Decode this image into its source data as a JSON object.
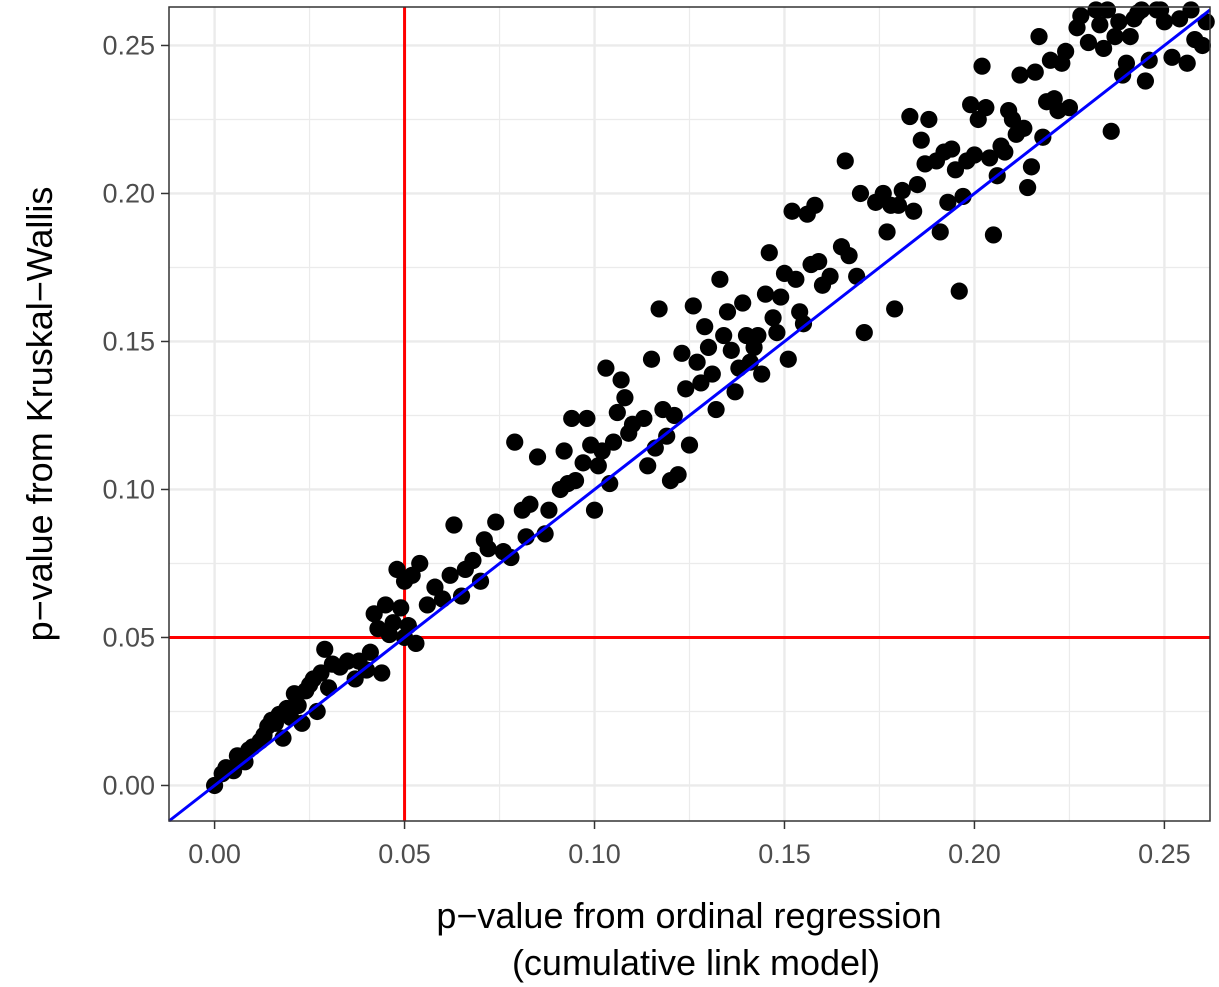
{
  "chart_data": {
    "type": "scatter",
    "title": "",
    "xlabel_lines": [
      "p−value from ordinal regression",
      "(cumulative link model)"
    ],
    "ylabel": "p−value from Kruskal−Wallis",
    "xlim": [
      -0.012,
      0.262
    ],
    "ylim": [
      -0.012,
      0.263
    ],
    "x_ticks": [
      0.0,
      0.05,
      0.1,
      0.15,
      0.2,
      0.25
    ],
    "y_ticks": [
      0.0,
      0.05,
      0.1,
      0.15,
      0.2,
      0.25
    ],
    "x_tick_labels": [
      "0.00",
      "0.05",
      "0.10",
      "0.15",
      "0.20",
      "0.25"
    ],
    "y_tick_labels": [
      "0.00",
      "0.05",
      "0.10",
      "0.15",
      "0.20",
      "0.25"
    ],
    "grid": true,
    "reference_lines": {
      "vertical_x": 0.05,
      "horizontal_y": 0.05,
      "threshold_color": "#ff0000",
      "identity_line": {
        "slope": 1,
        "intercept": 0,
        "color": "#0000ff"
      }
    },
    "point_color": "#000000",
    "points": [
      [
        0.0,
        0.0
      ],
      [
        0.002,
        0.004
      ],
      [
        0.003,
        0.006
      ],
      [
        0.005,
        0.005
      ],
      [
        0.006,
        0.01
      ],
      [
        0.008,
        0.008
      ],
      [
        0.009,
        0.012
      ],
      [
        0.01,
        0.013
      ],
      [
        0.012,
        0.015
      ],
      [
        0.013,
        0.017
      ],
      [
        0.014,
        0.02
      ],
      [
        0.015,
        0.022
      ],
      [
        0.016,
        0.021
      ],
      [
        0.017,
        0.024
      ],
      [
        0.018,
        0.016
      ],
      [
        0.019,
        0.026
      ],
      [
        0.02,
        0.023
      ],
      [
        0.021,
        0.031
      ],
      [
        0.022,
        0.027
      ],
      [
        0.023,
        0.021
      ],
      [
        0.024,
        0.032
      ],
      [
        0.025,
        0.034
      ],
      [
        0.026,
        0.036
      ],
      [
        0.027,
        0.025
      ],
      [
        0.028,
        0.038
      ],
      [
        0.029,
        0.046
      ],
      [
        0.03,
        0.033
      ],
      [
        0.031,
        0.041
      ],
      [
        0.033,
        0.04
      ],
      [
        0.035,
        0.042
      ],
      [
        0.037,
        0.036
      ],
      [
        0.038,
        0.042
      ],
      [
        0.04,
        0.039
      ],
      [
        0.041,
        0.045
      ],
      [
        0.042,
        0.058
      ],
      [
        0.043,
        0.053
      ],
      [
        0.044,
        0.038
      ],
      [
        0.045,
        0.061
      ],
      [
        0.046,
        0.051
      ],
      [
        0.047,
        0.055
      ],
      [
        0.048,
        0.073
      ],
      [
        0.049,
        0.06
      ],
      [
        0.05,
        0.05
      ],
      [
        0.05,
        0.069
      ],
      [
        0.051,
        0.054
      ],
      [
        0.052,
        0.071
      ],
      [
        0.053,
        0.048
      ],
      [
        0.054,
        0.075
      ],
      [
        0.056,
        0.061
      ],
      [
        0.058,
        0.067
      ],
      [
        0.06,
        0.063
      ],
      [
        0.062,
        0.071
      ],
      [
        0.063,
        0.088
      ],
      [
        0.065,
        0.064
      ],
      [
        0.066,
        0.073
      ],
      [
        0.068,
        0.076
      ],
      [
        0.07,
        0.069
      ],
      [
        0.071,
        0.083
      ],
      [
        0.072,
        0.08
      ],
      [
        0.074,
        0.089
      ],
      [
        0.076,
        0.079
      ],
      [
        0.078,
        0.077
      ],
      [
        0.079,
        0.116
      ],
      [
        0.081,
        0.093
      ],
      [
        0.082,
        0.084
      ],
      [
        0.083,
        0.095
      ],
      [
        0.085,
        0.111
      ],
      [
        0.087,
        0.085
      ],
      [
        0.088,
        0.093
      ],
      [
        0.091,
        0.1
      ],
      [
        0.092,
        0.113
      ],
      [
        0.093,
        0.102
      ],
      [
        0.094,
        0.124
      ],
      [
        0.095,
        0.103
      ],
      [
        0.097,
        0.109
      ],
      [
        0.098,
        0.124
      ],
      [
        0.099,
        0.115
      ],
      [
        0.1,
        0.093
      ],
      [
        0.101,
        0.108
      ],
      [
        0.102,
        0.113
      ],
      [
        0.103,
        0.141
      ],
      [
        0.104,
        0.102
      ],
      [
        0.105,
        0.116
      ],
      [
        0.106,
        0.126
      ],
      [
        0.107,
        0.137
      ],
      [
        0.108,
        0.131
      ],
      [
        0.109,
        0.119
      ],
      [
        0.11,
        0.122
      ],
      [
        0.113,
        0.124
      ],
      [
        0.114,
        0.108
      ],
      [
        0.115,
        0.144
      ],
      [
        0.116,
        0.114
      ],
      [
        0.117,
        0.161
      ],
      [
        0.118,
        0.127
      ],
      [
        0.119,
        0.118
      ],
      [
        0.12,
        0.103
      ],
      [
        0.121,
        0.125
      ],
      [
        0.122,
        0.105
      ],
      [
        0.123,
        0.146
      ],
      [
        0.124,
        0.134
      ],
      [
        0.125,
        0.115
      ],
      [
        0.126,
        0.162
      ],
      [
        0.127,
        0.143
      ],
      [
        0.128,
        0.136
      ],
      [
        0.129,
        0.155
      ],
      [
        0.13,
        0.148
      ],
      [
        0.131,
        0.139
      ],
      [
        0.132,
        0.127
      ],
      [
        0.133,
        0.171
      ],
      [
        0.134,
        0.152
      ],
      [
        0.135,
        0.16
      ],
      [
        0.136,
        0.147
      ],
      [
        0.137,
        0.133
      ],
      [
        0.138,
        0.141
      ],
      [
        0.139,
        0.163
      ],
      [
        0.14,
        0.152
      ],
      [
        0.141,
        0.143
      ],
      [
        0.142,
        0.148
      ],
      [
        0.143,
        0.152
      ],
      [
        0.144,
        0.139
      ],
      [
        0.145,
        0.166
      ],
      [
        0.146,
        0.18
      ],
      [
        0.147,
        0.158
      ],
      [
        0.148,
        0.153
      ],
      [
        0.149,
        0.165
      ],
      [
        0.15,
        0.173
      ],
      [
        0.151,
        0.144
      ],
      [
        0.152,
        0.194
      ],
      [
        0.153,
        0.171
      ],
      [
        0.154,
        0.16
      ],
      [
        0.155,
        0.156
      ],
      [
        0.156,
        0.193
      ],
      [
        0.157,
        0.176
      ],
      [
        0.158,
        0.196
      ],
      [
        0.159,
        0.177
      ],
      [
        0.16,
        0.169
      ],
      [
        0.162,
        0.172
      ],
      [
        0.165,
        0.182
      ],
      [
        0.166,
        0.211
      ],
      [
        0.167,
        0.179
      ],
      [
        0.169,
        0.172
      ],
      [
        0.17,
        0.2
      ],
      [
        0.171,
        0.153
      ],
      [
        0.174,
        0.197
      ],
      [
        0.176,
        0.2
      ],
      [
        0.177,
        0.187
      ],
      [
        0.178,
        0.196
      ],
      [
        0.179,
        0.161
      ],
      [
        0.18,
        0.196
      ],
      [
        0.181,
        0.201
      ],
      [
        0.183,
        0.226
      ],
      [
        0.184,
        0.194
      ],
      [
        0.185,
        0.203
      ],
      [
        0.186,
        0.218
      ],
      [
        0.187,
        0.21
      ],
      [
        0.188,
        0.225
      ],
      [
        0.19,
        0.211
      ],
      [
        0.191,
        0.187
      ],
      [
        0.192,
        0.214
      ],
      [
        0.193,
        0.197
      ],
      [
        0.194,
        0.215
      ],
      [
        0.195,
        0.208
      ],
      [
        0.196,
        0.167
      ],
      [
        0.197,
        0.199
      ],
      [
        0.198,
        0.211
      ],
      [
        0.199,
        0.23
      ],
      [
        0.2,
        0.213
      ],
      [
        0.201,
        0.225
      ],
      [
        0.202,
        0.243
      ],
      [
        0.203,
        0.229
      ],
      [
        0.204,
        0.212
      ],
      [
        0.205,
        0.186
      ],
      [
        0.206,
        0.206
      ],
      [
        0.207,
        0.216
      ],
      [
        0.208,
        0.214
      ],
      [
        0.209,
        0.228
      ],
      [
        0.21,
        0.225
      ],
      [
        0.211,
        0.22
      ],
      [
        0.212,
        0.24
      ],
      [
        0.213,
        0.222
      ],
      [
        0.214,
        0.202
      ],
      [
        0.215,
        0.209
      ],
      [
        0.216,
        0.241
      ],
      [
        0.217,
        0.253
      ],
      [
        0.218,
        0.219
      ],
      [
        0.219,
        0.231
      ],
      [
        0.22,
        0.245
      ],
      [
        0.221,
        0.232
      ],
      [
        0.222,
        0.228
      ],
      [
        0.223,
        0.244
      ],
      [
        0.224,
        0.248
      ],
      [
        0.225,
        0.229
      ],
      [
        0.227,
        0.256
      ],
      [
        0.228,
        0.26
      ],
      [
        0.23,
        0.251
      ],
      [
        0.232,
        0.262
      ],
      [
        0.233,
        0.257
      ],
      [
        0.234,
        0.249
      ],
      [
        0.236,
        0.221
      ],
      [
        0.237,
        0.253
      ],
      [
        0.238,
        0.258
      ],
      [
        0.239,
        0.24
      ],
      [
        0.24,
        0.244
      ],
      [
        0.241,
        0.253
      ],
      [
        0.242,
        0.259
      ],
      [
        0.243,
        0.261
      ],
      [
        0.245,
        0.238
      ],
      [
        0.246,
        0.245
      ],
      [
        0.248,
        0.262
      ],
      [
        0.25,
        0.258
      ],
      [
        0.252,
        0.246
      ],
      [
        0.254,
        0.259
      ],
      [
        0.256,
        0.244
      ],
      [
        0.258,
        0.252
      ],
      [
        0.26,
        0.25
      ],
      [
        0.261,
        0.258
      ],
      [
        0.235,
        0.262
      ],
      [
        0.244,
        0.262
      ],
      [
        0.249,
        0.262
      ],
      [
        0.257,
        0.262
      ]
    ]
  }
}
